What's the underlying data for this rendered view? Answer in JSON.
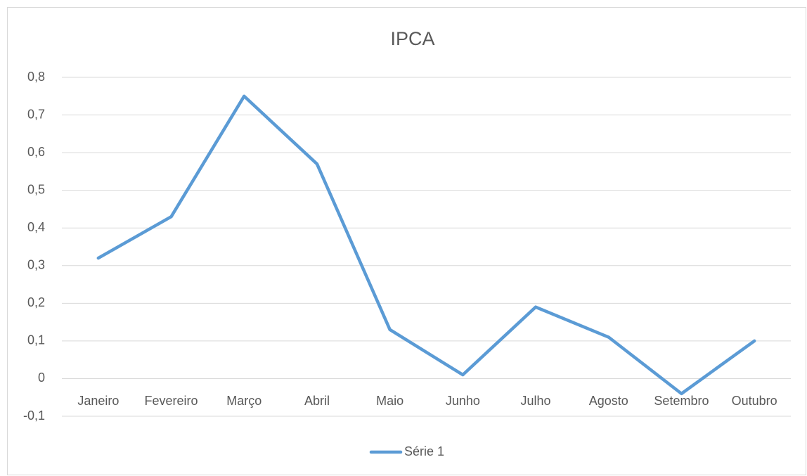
{
  "chart_data": {
    "type": "line",
    "title": "IPCA",
    "categories": [
      "Janeiro",
      "Fevereiro",
      "Março",
      "Abril",
      "Maio",
      "Junho",
      "Julho",
      "Agosto",
      "Setembro",
      "Outubro"
    ],
    "series": [
      {
        "name": "Série 1",
        "color": "#5b9bd5",
        "values": [
          0.32,
          0.43,
          0.75,
          0.57,
          0.13,
          0.01,
          0.19,
          0.11,
          -0.04,
          0.1
        ]
      }
    ],
    "ylim": [
      -0.1,
      0.8
    ],
    "yticks": [
      {
        "value": -0.1,
        "label": "-0,1"
      },
      0,
      {
        "value": 0.1,
        "label": "0,1"
      },
      {
        "value": 0.2,
        "label": "0,2"
      },
      {
        "value": 0.3,
        "label": "0,3"
      },
      {
        "value": 0.4,
        "label": "0,4"
      },
      {
        "value": 0.5,
        "label": "0,5"
      },
      {
        "value": 0.6,
        "label": "0,6"
      },
      {
        "value": 0.7,
        "label": "0,7"
      },
      {
        "value": 0.8,
        "label": "0,8"
      }
    ],
    "grid": true,
    "legend": "bottom"
  }
}
